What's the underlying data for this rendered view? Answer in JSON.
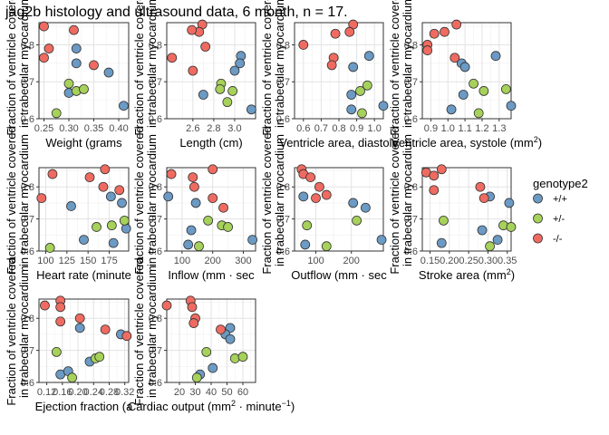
{
  "title": "jag2b histology and ultrasound data, 6 month, n = 17.",
  "legend": {
    "title": "genotype2",
    "entries": [
      {
        "label": "+/+",
        "color": "#6b9ac4"
      },
      {
        "label": "+/-",
        "color": "#a6d15a"
      },
      {
        "label": "-/-",
        "color": "#ef6b61"
      }
    ]
  },
  "chart_data": [
    {
      "type": "scatter",
      "xlabel": "Weight (grams",
      "ylabel": [
        "Fraction of ventricle covered",
        "in trabecular myocardium"
      ],
      "xlim": [
        0.24,
        0.42
      ],
      "xticks": [
        0.25,
        0.3,
        0.35,
        0.4
      ],
      "xticklabels": [
        "0.25",
        "0.30",
        "0.35",
        "0.40"
      ],
      "ylim": [
        0.6,
        0.86
      ],
      "yticks": [
        0.6,
        0.7,
        0.8
      ],
      "yticklabels": [
        "0.6",
        "0.7",
        "0.8"
      ],
      "points": [
        {
          "g": 0,
          "x": 0.315,
          "y": 0.79
        },
        {
          "g": 0,
          "x": 0.315,
          "y": 0.75
        },
        {
          "g": 0,
          "x": 0.3,
          "y": 0.67
        },
        {
          "g": 0,
          "x": 0.41,
          "y": 0.635
        },
        {
          "g": 0,
          "x": 0.38,
          "y": 0.725
        },
        {
          "g": 1,
          "x": 0.3,
          "y": 0.695
        },
        {
          "g": 1,
          "x": 0.315,
          "y": 0.675
        },
        {
          "g": 1,
          "x": 0.33,
          "y": 0.68
        },
        {
          "g": 1,
          "x": 0.275,
          "y": 0.615
        },
        {
          "g": 2,
          "x": 0.25,
          "y": 0.85
        },
        {
          "g": 2,
          "x": 0.26,
          "y": 0.79
        },
        {
          "g": 2,
          "x": 0.31,
          "y": 0.84
        },
        {
          "g": 2,
          "x": 0.25,
          "y": 0.765
        },
        {
          "g": 2,
          "x": 0.35,
          "y": 0.745
        }
      ]
    },
    {
      "type": "scatter",
      "xlabel": "Length (cm)",
      "ylabel": [
        "Fraction of ventricle covered",
        "in trabecular myocardium"
      ],
      "xlim": [
        2.35,
        3.2
      ],
      "xticks": [
        2.6,
        2.8,
        3.0
      ],
      "xticklabels": [
        "2.6",
        "2.8",
        "3.0"
      ],
      "ylim": [
        0.6,
        0.86
      ],
      "yticks": [
        0.6,
        0.7,
        0.8
      ],
      "yticklabels": [
        "0.6",
        "0.7",
        "0.8"
      ],
      "points": [
        {
          "g": 0,
          "x": 3.06,
          "y": 0.77
        },
        {
          "g": 0,
          "x": 3.05,
          "y": 0.75
        },
        {
          "g": 0,
          "x": 3.0,
          "y": 0.73
        },
        {
          "g": 0,
          "x": 2.7,
          "y": 0.665
        },
        {
          "g": 0,
          "x": 3.16,
          "y": 0.625
        },
        {
          "g": 1,
          "x": 2.87,
          "y": 0.695
        },
        {
          "g": 1,
          "x": 2.86,
          "y": 0.68
        },
        {
          "g": 1,
          "x": 2.98,
          "y": 0.675
        },
        {
          "g": 1,
          "x": 2.93,
          "y": 0.645
        },
        {
          "g": 2,
          "x": 2.69,
          "y": 0.855
        },
        {
          "g": 2,
          "x": 2.66,
          "y": 0.835
        },
        {
          "g": 2,
          "x": 2.59,
          "y": 0.84
        },
        {
          "g": 2,
          "x": 2.72,
          "y": 0.795
        },
        {
          "g": 2,
          "x": 2.4,
          "y": 0.765
        },
        {
          "g": 2,
          "x": 2.6,
          "y": 0.73
        }
      ]
    },
    {
      "type": "scatter",
      "xlabel": "Ventricle area, diastole",
      "ylabel": [
        "Fraction of ventricle covered",
        "in trabecular myocardium"
      ],
      "xlim": [
        0.55,
        1.05
      ],
      "xticks": [
        0.6,
        0.7,
        0.8,
        0.9,
        1.0
      ],
      "xticklabels": [
        "0.6",
        "0.7",
        "0.8",
        "0.9",
        "1.0"
      ],
      "ylim": [
        0.6,
        0.86
      ],
      "yticks": [
        0.6,
        0.7,
        0.8
      ],
      "yticklabels": [
        "0.6",
        "0.7",
        "0.8"
      ],
      "points": [
        {
          "g": 0,
          "x": 0.97,
          "y": 0.77
        },
        {
          "g": 0,
          "x": 0.88,
          "y": 0.74
        },
        {
          "g": 0,
          "x": 0.87,
          "y": 0.665
        },
        {
          "g": 0,
          "x": 1.05,
          "y": 0.635
        },
        {
          "g": 0,
          "x": 0.87,
          "y": 0.625
        },
        {
          "g": 1,
          "x": 0.96,
          "y": 0.69
        },
        {
          "g": 1,
          "x": 0.92,
          "y": 0.675
        },
        {
          "g": 1,
          "x": 0.93,
          "y": 0.615
        },
        {
          "g": 2,
          "x": 0.88,
          "y": 0.855
        },
        {
          "g": 2,
          "x": 0.86,
          "y": 0.835
        },
        {
          "g": 2,
          "x": 0.78,
          "y": 0.83
        },
        {
          "g": 2,
          "x": 0.6,
          "y": 0.8
        },
        {
          "g": 2,
          "x": 0.77,
          "y": 0.765
        },
        {
          "g": 2,
          "x": 0.76,
          "y": 0.745
        }
      ]
    },
    {
      "type": "scatter",
      "xlabel": "Ventricle area, systole (mm",
      "xlabel_sup": "2",
      "xlabel_end": ")",
      "ylabel": [
        "Fraction of ventricle covered",
        "in trabecular myocardium"
      ],
      "xlim": [
        0.85,
        1.37
      ],
      "xticks": [
        0.9,
        1.0,
        1.1,
        1.2,
        1.3
      ],
      "xticklabels": [
        "0.9",
        "1.0",
        "1.1",
        "1.2",
        "1.3"
      ],
      "ylim": [
        0.6,
        0.86
      ],
      "yticks": [
        0.6,
        0.7,
        0.8
      ],
      "yticklabels": [
        "0.6",
        "0.7",
        "0.8"
      ],
      "points": [
        {
          "g": 0,
          "x": 1.28,
          "y": 0.77
        },
        {
          "g": 0,
          "x": 1.08,
          "y": 0.75
        },
        {
          "g": 0,
          "x": 1.1,
          "y": 0.74
        },
        {
          "g": 0,
          "x": 1.09,
          "y": 0.665
        },
        {
          "g": 0,
          "x": 1.37,
          "y": 0.635
        },
        {
          "g": 0,
          "x": 1.02,
          "y": 0.625
        },
        {
          "g": 1,
          "x": 1.15,
          "y": 0.695
        },
        {
          "g": 1,
          "x": 1.21,
          "y": 0.675
        },
        {
          "g": 1,
          "x": 1.34,
          "y": 0.68
        },
        {
          "g": 1,
          "x": 1.18,
          "y": 0.615
        },
        {
          "g": 2,
          "x": 0.92,
          "y": 0.83
        },
        {
          "g": 2,
          "x": 0.98,
          "y": 0.835
        },
        {
          "g": 2,
          "x": 1.05,
          "y": 0.855
        },
        {
          "g": 2,
          "x": 0.88,
          "y": 0.8
        },
        {
          "g": 2,
          "x": 0.88,
          "y": 0.785
        },
        {
          "g": 2,
          "x": 1.04,
          "y": 0.765
        }
      ]
    },
    {
      "type": "scatter",
      "xlabel": "Heart rate (minute",
      "ylabel": [
        "Fraction of ventricle covered",
        "in trabecular myocardium"
      ],
      "xlim": [
        92,
        198
      ],
      "xticks": [
        100,
        125,
        150,
        175
      ],
      "xticklabels": [
        "100",
        "125",
        "150",
        "175"
      ],
      "ylim": [
        0.6,
        0.86
      ],
      "yticks": [
        0.6,
        0.7,
        0.8
      ],
      "yticklabels": [
        "0.6",
        "0.7",
        "0.8"
      ],
      "points": [
        {
          "g": 0,
          "x": 177,
          "y": 0.77
        },
        {
          "g": 0,
          "x": 190,
          "y": 0.75
        },
        {
          "g": 0,
          "x": 130,
          "y": 0.74
        },
        {
          "g": 0,
          "x": 195,
          "y": 0.67
        },
        {
          "g": 0,
          "x": 145,
          "y": 0.635
        },
        {
          "g": 0,
          "x": 180,
          "y": 0.625
        },
        {
          "g": 1,
          "x": 193,
          "y": 0.695
        },
        {
          "g": 1,
          "x": 178,
          "y": 0.68
        },
        {
          "g": 1,
          "x": 160,
          "y": 0.675
        },
        {
          "g": 1,
          "x": 105,
          "y": 0.61
        },
        {
          "g": 2,
          "x": 170,
          "y": 0.855
        },
        {
          "g": 2,
          "x": 108,
          "y": 0.84
        },
        {
          "g": 2,
          "x": 152,
          "y": 0.83
        },
        {
          "g": 2,
          "x": 168,
          "y": 0.8
        },
        {
          "g": 2,
          "x": 95,
          "y": 0.765
        },
        {
          "g": 2,
          "x": 187,
          "y": 0.79
        }
      ]
    },
    {
      "type": "scatter",
      "xlabel": "Inflow (mm",
      "xlabel_dot": "sec",
      "ylabel": [
        "Fraction of ventricle covered",
        "in trabecular myocardium"
      ],
      "xlim": [
        50,
        340
      ],
      "xticks": [
        100,
        200,
        300
      ],
      "xticklabels": [
        "100",
        "200",
        "300"
      ],
      "ylim": [
        0.6,
        0.86
      ],
      "yticks": [
        0.6,
        0.7,
        0.8
      ],
      "yticklabels": [
        "0.6",
        "0.7",
        "0.8"
      ],
      "points": [
        {
          "g": 0,
          "x": 55,
          "y": 0.77
        },
        {
          "g": 0,
          "x": 145,
          "y": 0.75
        },
        {
          "g": 0,
          "x": 130,
          "y": 0.665
        },
        {
          "g": 0,
          "x": 330,
          "y": 0.635
        },
        {
          "g": 0,
          "x": 120,
          "y": 0.62
        },
        {
          "g": 1,
          "x": 185,
          "y": 0.695
        },
        {
          "g": 1,
          "x": 230,
          "y": 0.68
        },
        {
          "g": 1,
          "x": 250,
          "y": 0.675
        },
        {
          "g": 1,
          "x": 155,
          "y": 0.615
        },
        {
          "g": 2,
          "x": 200,
          "y": 0.855
        },
        {
          "g": 2,
          "x": 65,
          "y": 0.84
        },
        {
          "g": 2,
          "x": 135,
          "y": 0.83
        },
        {
          "g": 2,
          "x": 140,
          "y": 0.8
        },
        {
          "g": 2,
          "x": 200,
          "y": 0.765
        },
        {
          "g": 2,
          "x": 235,
          "y": 0.735
        }
      ]
    },
    {
      "type": "scatter",
      "xlabel": "Outflow (mm",
      "xlabel_dot": "sec",
      "ylabel": [
        "Fraction of ventricle covered",
        "in trabecular myocardium"
      ],
      "xlim": [
        40,
        290
      ],
      "xticks": [
        100,
        200
      ],
      "xticklabels": [
        "100",
        "200"
      ],
      "ylim": [
        0.6,
        0.86
      ],
      "yticks": [
        0.6,
        0.7,
        0.8
      ],
      "yticklabels": [
        "0.6",
        "0.7",
        "0.8"
      ],
      "points": [
        {
          "g": 0,
          "x": 65,
          "y": 0.77
        },
        {
          "g": 0,
          "x": 205,
          "y": 0.75
        },
        {
          "g": 0,
          "x": 240,
          "y": 0.735
        },
        {
          "g": 0,
          "x": 285,
          "y": 0.635
        },
        {
          "g": 0,
          "x": 70,
          "y": 0.62
        },
        {
          "g": 1,
          "x": 215,
          "y": 0.695
        },
        {
          "g": 1,
          "x": 75,
          "y": 0.68
        },
        {
          "g": 1,
          "x": 130,
          "y": 0.615
        },
        {
          "g": 2,
          "x": 60,
          "y": 0.855
        },
        {
          "g": 2,
          "x": 65,
          "y": 0.84
        },
        {
          "g": 2,
          "x": 85,
          "y": 0.83
        },
        {
          "g": 2,
          "x": 110,
          "y": 0.8
        },
        {
          "g": 2,
          "x": 100,
          "y": 0.765
        },
        {
          "g": 2,
          "x": 130,
          "y": 0.775
        }
      ]
    },
    {
      "type": "scatter",
      "xlabel": "Stroke area (mm",
      "xlabel_sup": "2",
      "xlabel_end": ")",
      "ylabel": [
        "Fraction of ventricle covered",
        "in trabecular myocardium"
      ],
      "xlim": [
        0.13,
        0.36
      ],
      "xticks": [
        0.15,
        0.2,
        0.25,
        0.3,
        0.35
      ],
      "xticklabels": [
        "0.15",
        "0.20",
        "0.25",
        "0.30",
        "0.35"
      ],
      "ylim": [
        0.6,
        0.86
      ],
      "yticks": [
        0.6,
        0.7,
        0.8
      ],
      "yticklabels": [
        "0.6",
        "0.7",
        "0.8"
      ],
      "points": [
        {
          "g": 0,
          "x": 0.305,
          "y": 0.77
        },
        {
          "g": 0,
          "x": 0.355,
          "y": 0.75
        },
        {
          "g": 0,
          "x": 0.285,
          "y": 0.665
        },
        {
          "g": 0,
          "x": 0.18,
          "y": 0.625
        },
        {
          "g": 0,
          "x": 0.325,
          "y": 0.635
        },
        {
          "g": 1,
          "x": 0.185,
          "y": 0.695
        },
        {
          "g": 1,
          "x": 0.34,
          "y": 0.68
        },
        {
          "g": 1,
          "x": 0.36,
          "y": 0.675
        },
        {
          "g": 1,
          "x": 0.305,
          "y": 0.615
        },
        {
          "g": 2,
          "x": 0.14,
          "y": 0.845
        },
        {
          "g": 2,
          "x": 0.18,
          "y": 0.855
        },
        {
          "g": 2,
          "x": 0.16,
          "y": 0.835
        },
        {
          "g": 2,
          "x": 0.28,
          "y": 0.8
        },
        {
          "g": 2,
          "x": 0.16,
          "y": 0.79
        },
        {
          "g": 2,
          "x": 0.29,
          "y": 0.765
        }
      ]
    },
    {
      "type": "scatter",
      "xlabel": "Ejection fraction (a",
      "ylabel": [
        "Fraction of ventricle covered",
        "in trabecular myocardium"
      ],
      "xlim": [
        0.1,
        0.33
      ],
      "xticks": [
        0.12,
        0.16,
        0.2,
        0.24,
        0.28,
        0.32
      ],
      "xticklabels": [
        "0.12",
        "0.16",
        "0.20",
        "0.24",
        "0.28",
        "0.32"
      ],
      "ylim": [
        0.6,
        0.86
      ],
      "yticks": [
        0.6,
        0.7,
        0.8
      ],
      "yticklabels": [
        "0.6",
        "0.7",
        "0.8"
      ],
      "points": [
        {
          "g": 0,
          "x": 0.205,
          "y": 0.77
        },
        {
          "g": 0,
          "x": 0.31,
          "y": 0.75
        },
        {
          "g": 0,
          "x": 0.23,
          "y": 0.665
        },
        {
          "g": 0,
          "x": 0.155,
          "y": 0.625
        },
        {
          "g": 0,
          "x": 0.175,
          "y": 0.635
        },
        {
          "g": 1,
          "x": 0.145,
          "y": 0.695
        },
        {
          "g": 1,
          "x": 0.245,
          "y": 0.675
        },
        {
          "g": 1,
          "x": 0.255,
          "y": 0.68
        },
        {
          "g": 1,
          "x": 0.185,
          "y": 0.615
        },
        {
          "g": 2,
          "x": 0.115,
          "y": 0.84
        },
        {
          "g": 2,
          "x": 0.155,
          "y": 0.855
        },
        {
          "g": 2,
          "x": 0.155,
          "y": 0.835
        },
        {
          "g": 2,
          "x": 0.205,
          "y": 0.8
        },
        {
          "g": 2,
          "x": 0.155,
          "y": 0.79
        },
        {
          "g": 2,
          "x": 0.27,
          "y": 0.765
        },
        {
          "g": 2,
          "x": 0.325,
          "y": 0.745
        }
      ]
    },
    {
      "type": "scatter",
      "xlabel": "Cardiac output (mm",
      "xlabel_sup": "2",
      "xlabel_dot": "minute",
      "xlabel_sup2": "−1",
      "xlabel_end": ")",
      "ylabel": [
        "Fraction of ventricle covered",
        "in trabecular myocardium"
      ],
      "xlim": [
        12,
        68
      ],
      "xticks": [
        20,
        30,
        40,
        50,
        60
      ],
      "xticklabels": [
        "20",
        "30",
        "40",
        "50",
        "60"
      ],
      "ylim": [
        0.6,
        0.86
      ],
      "yticks": [
        0.6,
        0.7,
        0.8
      ],
      "yticklabels": [
        "0.6",
        "0.7",
        "0.8"
      ],
      "points": [
        {
          "g": 0,
          "x": 52,
          "y": 0.77
        },
        {
          "g": 0,
          "x": 49,
          "y": 0.75
        },
        {
          "g": 0,
          "x": 52,
          "y": 0.735
        },
        {
          "g": 0,
          "x": 41,
          "y": 0.645
        },
        {
          "g": 0,
          "x": 33,
          "y": 0.625
        },
        {
          "g": 1,
          "x": 37,
          "y": 0.695
        },
        {
          "g": 1,
          "x": 55,
          "y": 0.675
        },
        {
          "g": 1,
          "x": 60,
          "y": 0.68
        },
        {
          "g": 1,
          "x": 31,
          "y": 0.615
        },
        {
          "g": 2,
          "x": 12,
          "y": 0.84
        },
        {
          "g": 2,
          "x": 27,
          "y": 0.855
        },
        {
          "g": 2,
          "x": 28,
          "y": 0.835
        },
        {
          "g": 2,
          "x": 30,
          "y": 0.8
        },
        {
          "g": 2,
          "x": 29,
          "y": 0.785
        },
        {
          "g": 2,
          "x": 46,
          "y": 0.765
        }
      ]
    }
  ]
}
